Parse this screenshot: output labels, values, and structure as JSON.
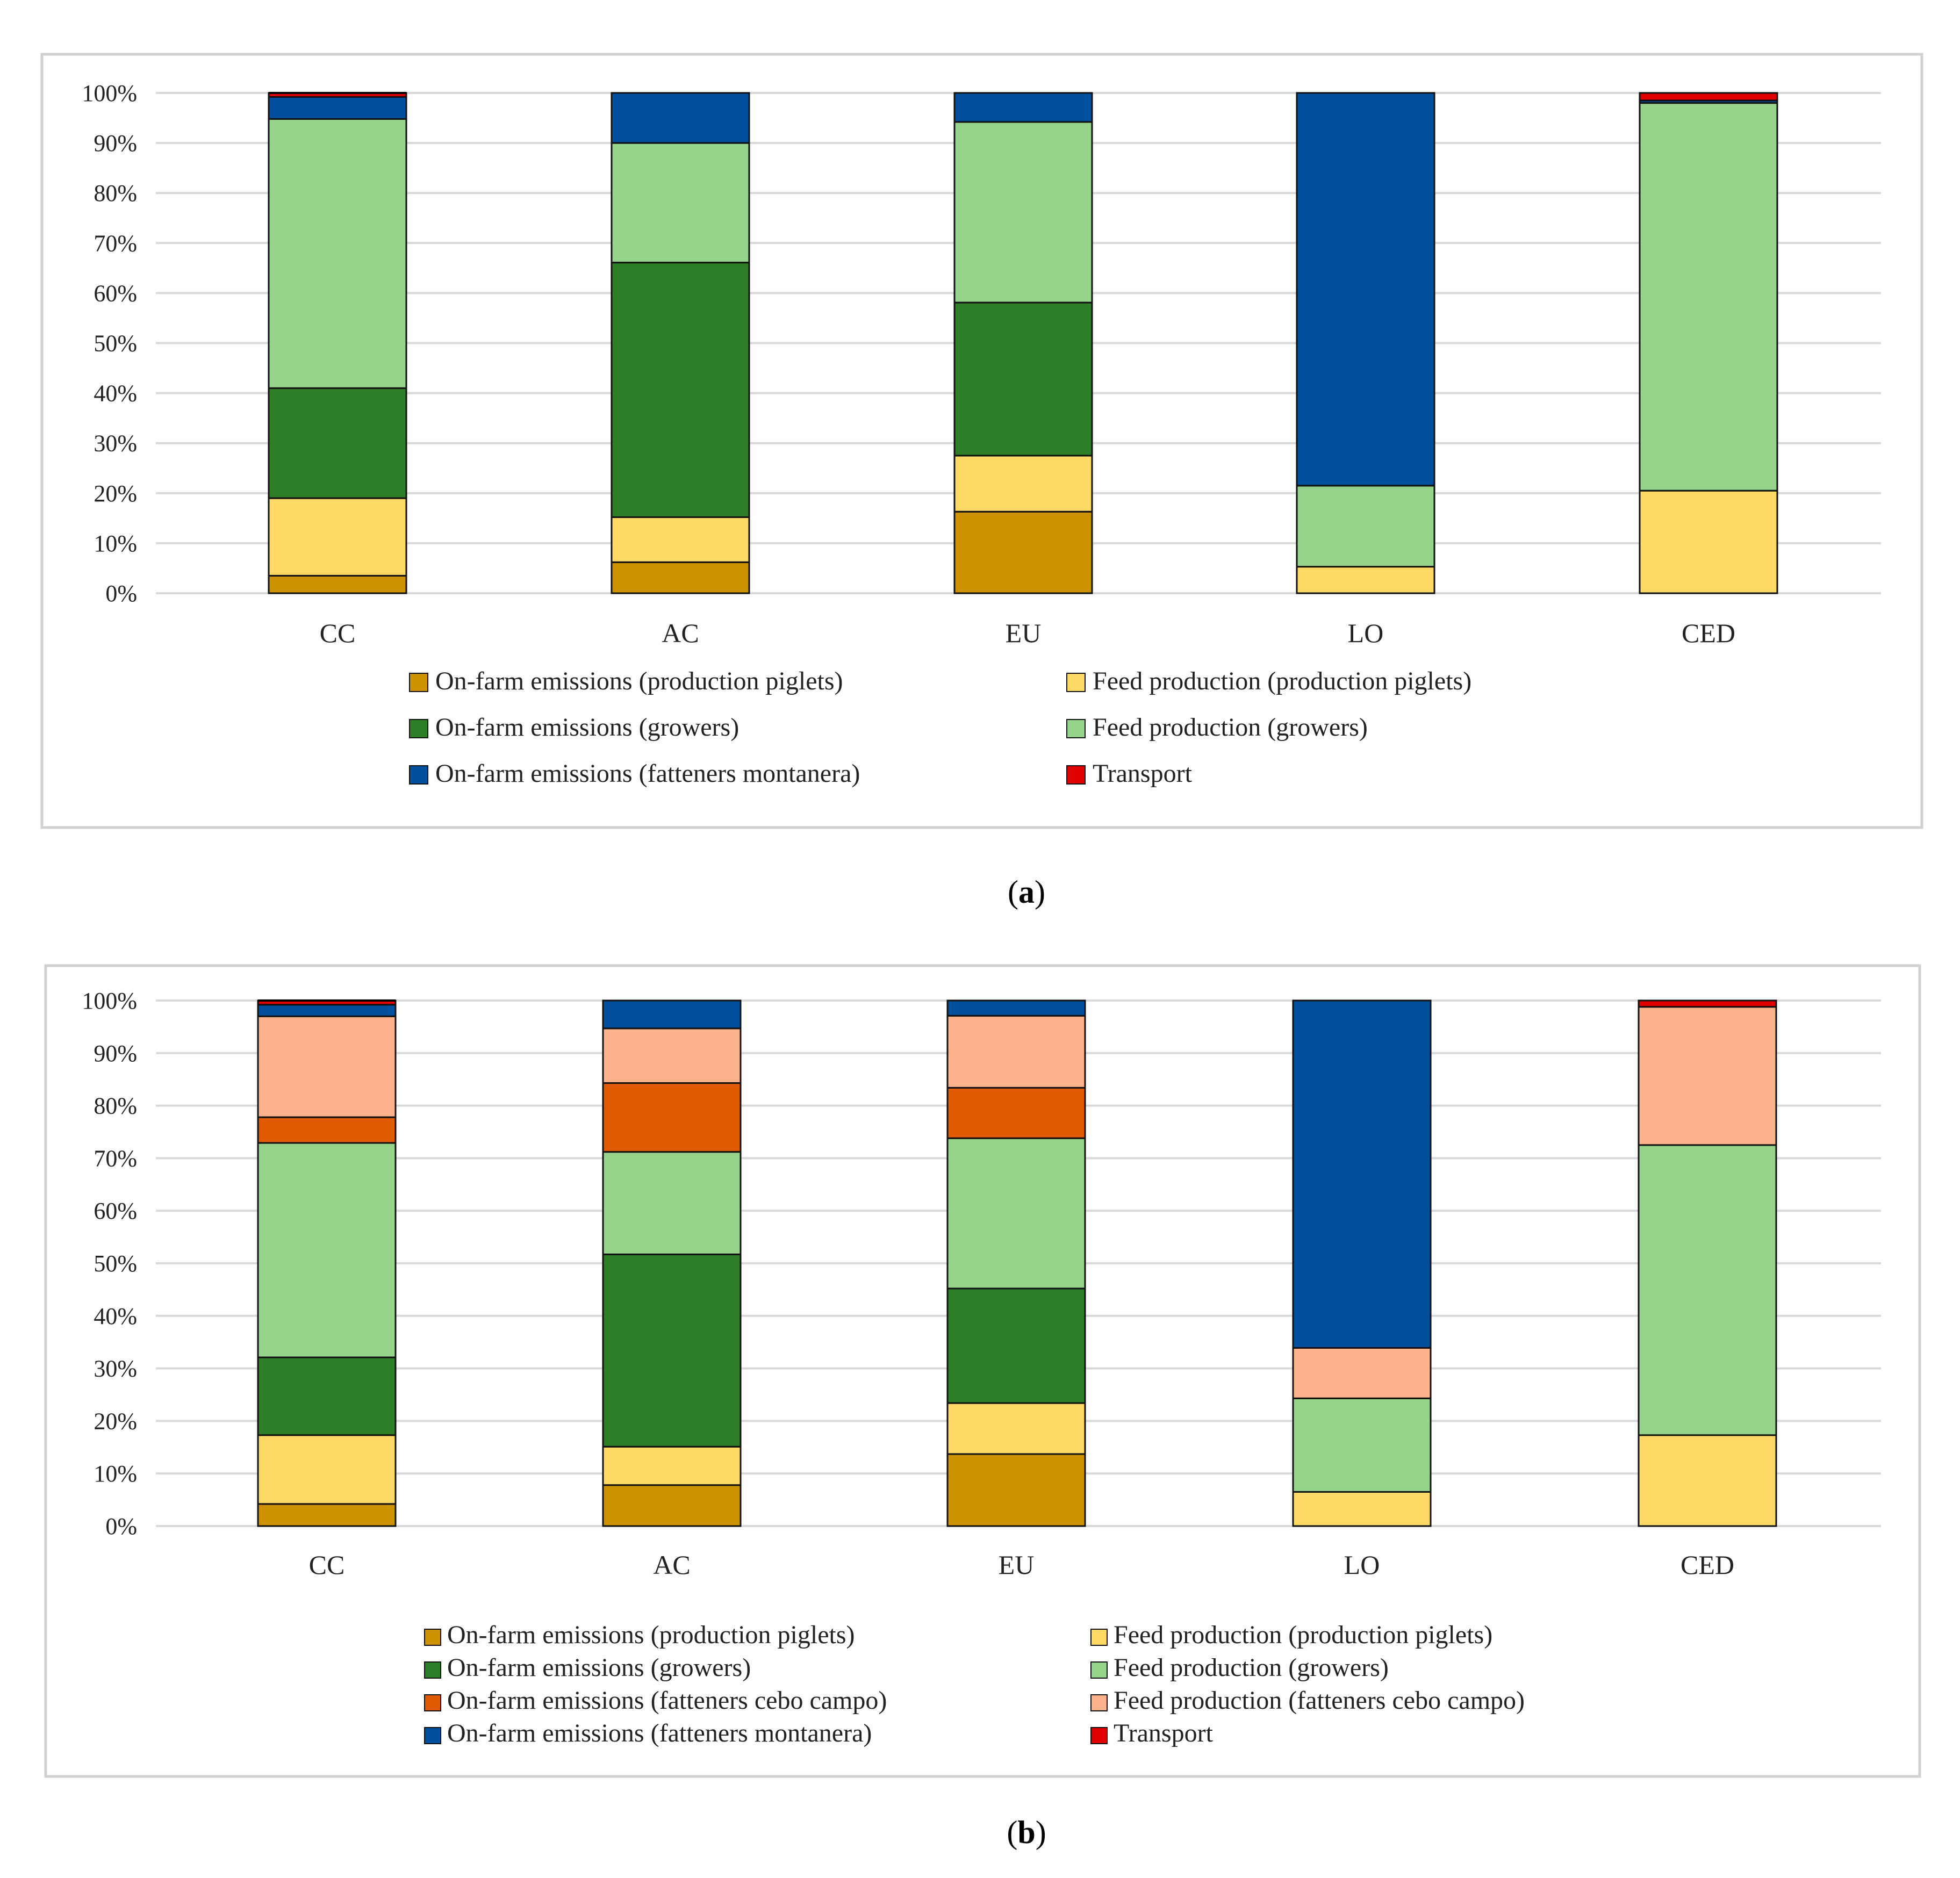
{
  "colors": {
    "on_farm_piglets": "#CC9200",
    "feed_piglets": "#FFD966",
    "on_farm_growers": "#2E7D27",
    "feed_growers": "#96D48C",
    "on_farm_cebo": "#E05A00",
    "feed_cebo": "#FCB28A",
    "on_farm_montanera": "#00509E",
    "transport": "#E00000"
  },
  "captions": {
    "a": "a",
    "b": "b"
  },
  "chart_data": [
    {
      "id": "a",
      "type": "bar",
      "stacked": true,
      "categories": [
        "CC",
        "AC",
        "EU",
        "LO",
        "CED"
      ],
      "ylim": [
        0,
        100
      ],
      "yticks": [
        "0%",
        "10%",
        "20%",
        "30%",
        "40%",
        "50%",
        "60%",
        "70%",
        "80%",
        "90%",
        "100%"
      ],
      "grid": true,
      "legend_position": "bottom",
      "series": [
        {
          "name": "On-farm emissions (production piglets)",
          "color_key": "on_farm_piglets",
          "values": [
            3.5,
            6.2,
            16.3,
            0,
            0
          ]
        },
        {
          "name": "Feed production (production piglets)",
          "color_key": "feed_piglets",
          "values": [
            15.5,
            9.0,
            11.2,
            5.3,
            20.5
          ]
        },
        {
          "name": "On-farm emissions (growers)",
          "color_key": "on_farm_growers",
          "values": [
            22.0,
            50.9,
            30.6,
            0,
            0
          ]
        },
        {
          "name": "Feed production (growers)",
          "color_key": "feed_growers",
          "values": [
            53.8,
            23.9,
            36.1,
            16.2,
            77.5
          ]
        },
        {
          "name": "On-farm emissions (fatteners montanera)",
          "color_key": "on_farm_montanera",
          "values": [
            4.4,
            10.0,
            5.8,
            78.5,
            0.5
          ]
        },
        {
          "name": "Transport",
          "color_key": "transport",
          "values": [
            0.8,
            0,
            0,
            0,
            1.5
          ]
        }
      ]
    },
    {
      "id": "b",
      "type": "bar",
      "stacked": true,
      "categories": [
        "CC",
        "AC",
        "EU",
        "LO",
        "CED"
      ],
      "ylim": [
        0,
        100
      ],
      "yticks": [
        "0%",
        "10%",
        "20%",
        "30%",
        "40%",
        "50%",
        "60%",
        "70%",
        "80%",
        "90%",
        "100%"
      ],
      "grid": true,
      "legend_position": "bottom",
      "series": [
        {
          "name": "On-farm emissions (production piglets)",
          "color_key": "on_farm_piglets",
          "values": [
            4.2,
            7.8,
            13.7,
            0,
            0
          ]
        },
        {
          "name": "Feed production (production piglets)",
          "color_key": "feed_piglets",
          "values": [
            13.1,
            7.3,
            9.7,
            6.5,
            17.3
          ]
        },
        {
          "name": "On-farm emissions (growers)",
          "color_key": "on_farm_growers",
          "values": [
            14.8,
            36.6,
            21.8,
            0,
            0
          ]
        },
        {
          "name": "Feed production (growers)",
          "color_key": "feed_growers",
          "values": [
            40.8,
            19.5,
            28.6,
            17.8,
            55.2
          ]
        },
        {
          "name": "On-farm emissions (fatteners cebo campo)",
          "color_key": "on_farm_cebo",
          "values": [
            4.9,
            13.1,
            9.6,
            0,
            0
          ]
        },
        {
          "name": "Feed production (fatteners cebo campo)",
          "color_key": "feed_cebo",
          "values": [
            19.2,
            10.4,
            13.7,
            9.6,
            26.3
          ]
        },
        {
          "name": "On-farm emissions (fatteners montanera)",
          "color_key": "on_farm_montanera",
          "values": [
            2.2,
            5.3,
            2.9,
            66.1,
            0
          ]
        },
        {
          "name": "Transport",
          "color_key": "transport",
          "values": [
            0.8,
            0,
            0,
            0,
            1.2
          ]
        }
      ]
    }
  ]
}
